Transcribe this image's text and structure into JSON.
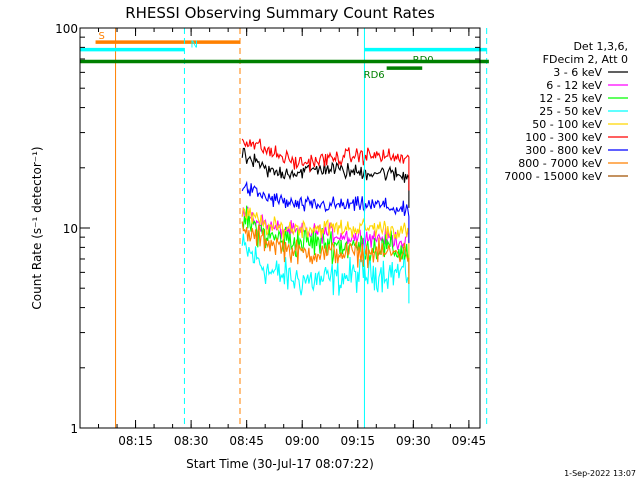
{
  "chart_data": {
    "type": "line",
    "title": "RHESSI Observing Summary Count Rates",
    "xlabel": "Start Time (30-Jul-17 08:07:22)",
    "ylabel": "Count Rate (s⁻¹ detector⁻¹)",
    "yscale": "log",
    "ylim": [
      1,
      100
    ],
    "xlim_minutes": [
      8.0,
      9.8
    ],
    "x_ticks": [
      {
        "label": "08:15",
        "value": 8.25
      },
      {
        "label": "08:30",
        "value": 8.5
      },
      {
        "label": "08:45",
        "value": 8.75
      },
      {
        "label": "09:00",
        "value": 9.0
      },
      {
        "label": "09:15",
        "value": 9.25
      },
      {
        "label": "09:30",
        "value": 9.5
      },
      {
        "label": "09:45",
        "value": 9.75
      }
    ],
    "y_ticks": [
      {
        "label": "1",
        "value": 1
      },
      {
        "label": "10",
        "value": 10
      },
      {
        "label": "100",
        "value": 100
      }
    ],
    "legend": {
      "header_lines": [
        "Det 1,3,6,",
        "FDecim 2, Att 0"
      ],
      "placement": "right"
    },
    "data_start_hour": 8.73,
    "data_end_hour": 9.48,
    "series": [
      {
        "name": "3 - 6 keV",
        "color": "#000000",
        "level": [
          23,
          19,
          19,
          20,
          19,
          19,
          18
        ],
        "jitter": 0.06
      },
      {
        "name": "6 - 12 keV",
        "color": "#ff00ff",
        "level": [
          12,
          10,
          9.5,
          9.5,
          9.0,
          9.0,
          8.5
        ],
        "jitter": 0.07
      },
      {
        "name": "12 - 25 keV",
        "color": "#00ff00",
        "level": [
          11,
          9,
          8.5,
          8.5,
          8.0,
          8.0,
          7.5
        ],
        "jitter": 0.12
      },
      {
        "name": "25 - 50 keV",
        "color": "#00ffff",
        "level": [
          8.0,
          6.0,
          5.5,
          5.5,
          5.8,
          6.0,
          6.0
        ],
        "jitter": 0.13
      },
      {
        "name": "50 - 100 keV",
        "color": "#ffd700",
        "level": [
          12,
          10,
          10,
          10,
          10,
          10,
          9.5
        ],
        "jitter": 0.07
      },
      {
        "name": "100 - 300 keV",
        "color": "#ff0000",
        "level": [
          28,
          24,
          21,
          22,
          23,
          23,
          22
        ],
        "jitter": 0.06
      },
      {
        "name": "300 - 800 keV",
        "color": "#0000ff",
        "level": [
          16,
          14,
          13,
          13,
          13,
          13,
          12
        ],
        "jitter": 0.06
      },
      {
        "name": "800 - 7000 keV",
        "color": "#ff8000",
        "level": [
          9.5,
          8.5,
          7.5,
          7.5,
          7.5,
          7.5,
          7.5
        ],
        "jitter": 0.09
      },
      {
        "name": "7000 - 15000 keV",
        "color": "#a05000",
        "level": [],
        "jitter": 0
      }
    ],
    "markers": [
      {
        "label": "S",
        "color": "#ff8000",
        "value_hour": 8.16,
        "style": "solid",
        "bar_start_hour": 8.07,
        "bar_end_hour": 8.72,
        "bar_level": 85,
        "label_level": 88
      },
      {
        "label": "N",
        "color": "#00ffff",
        "value_hour": 8.47,
        "style": "dashed",
        "bar_start_hour": 8.0,
        "bar_end_hour": 8.47,
        "bar_level": 78,
        "label_level": 80
      },
      {
        "label": "",
        "color": "#ff8000",
        "value_hour": 8.72,
        "style": "dashed"
      },
      {
        "label": "",
        "color": "#00ffff",
        "value_hour": 9.28,
        "style": "solid"
      },
      {
        "label": "",
        "color": "#00ffff",
        "value_hour": 9.83,
        "style": "dashed",
        "bar_start_hour": 9.28,
        "bar_end_hour": 9.83,
        "bar_level": 78
      }
    ],
    "green_bars": [
      {
        "label": "",
        "start_hour": 8.0,
        "end_hour": 9.84,
        "level": 68
      },
      {
        "label": "RD0",
        "start_hour": 9.38,
        "end_hour": 9.54,
        "level": 63,
        "label_level": 70
      },
      {
        "label": "RD6",
        "start_hour": 9.38,
        "end_hour": 9.54,
        "level": 63,
        "label_level": 63
      }
    ]
  },
  "footer": {
    "timestamp": "1-Sep-2022 13:07"
  }
}
